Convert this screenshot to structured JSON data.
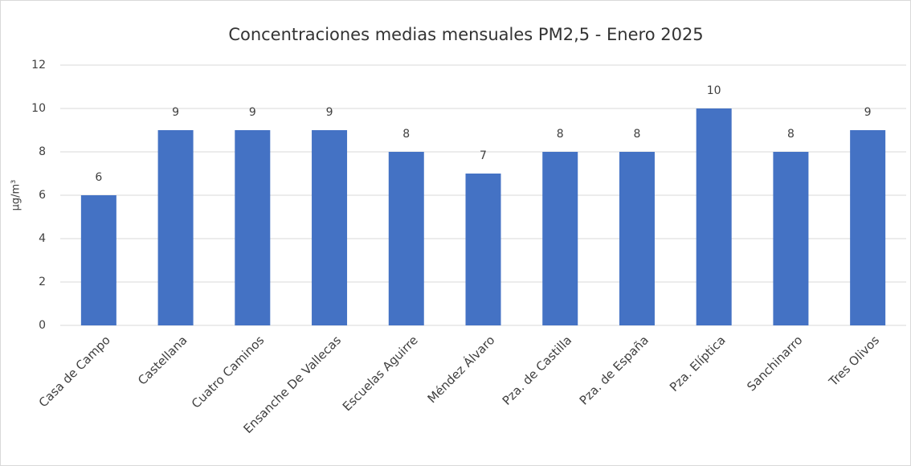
{
  "chart_data": {
    "type": "bar",
    "title": "Concentraciones medias mensuales PM2,5 - Enero 2025",
    "ylabel": "µg/m³",
    "categories": [
      "Casa de Campo",
      "Castellana",
      "Cuatro Caminos",
      "Ensanche De Vallecas",
      "Escuelas Aguirre",
      "Méndez Álvaro",
      "Pza. de Castilla",
      "Pza. de España",
      "Pza. Elíptica",
      "Sanchinarro",
      "Tres Olivos"
    ],
    "values": [
      6,
      9,
      9,
      9,
      8,
      7,
      8,
      8,
      10,
      8,
      9
    ],
    "color": "#4472c4",
    "ylim": [
      0,
      12
    ],
    "yticks": [
      0,
      2,
      4,
      6,
      8,
      10,
      12
    ],
    "grid": true
  }
}
